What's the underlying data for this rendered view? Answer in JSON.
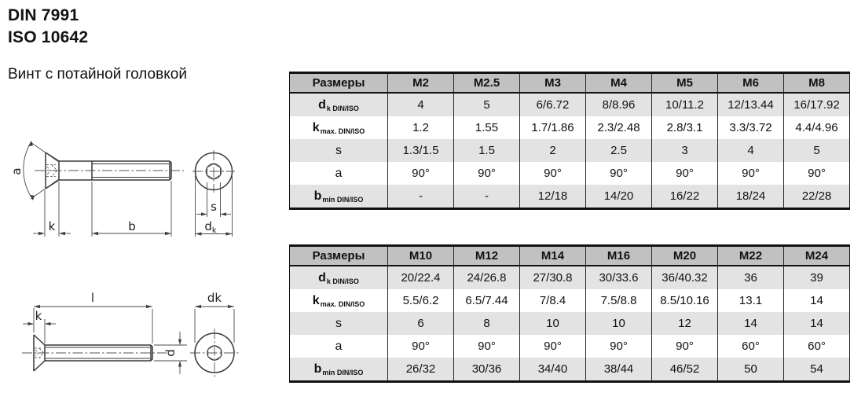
{
  "header": {
    "din": "DIN 7991",
    "iso": "ISO 10642",
    "subtitle": "Винт с потайной головкой"
  },
  "tables": [
    {
      "header": [
        "Размеры",
        "M2",
        "M2.5",
        "M3",
        "M4",
        "M5",
        "M6",
        "M8"
      ],
      "rows": [
        {
          "label_main": "d",
          "label_sub": "k DIN/ISO",
          "values": [
            "4",
            "5",
            "6/6.72",
            "8/8.96",
            "10/11.2",
            "12/13.44",
            "16/17.92"
          ]
        },
        {
          "label_main": "k",
          "label_sub": "max. DIN/ISO",
          "values": [
            "1.2",
            "1.55",
            "1.7/1.86",
            "2.3/2.48",
            "2.8/3.1",
            "3.3/3.72",
            "4.4/4.96"
          ]
        },
        {
          "label_main": "s",
          "label_sub": "",
          "values": [
            "1.3/1.5",
            "1.5",
            "2",
            "2.5",
            "3",
            "4",
            "5"
          ]
        },
        {
          "label_main": "a",
          "label_sub": "",
          "values": [
            "90°",
            "90°",
            "90°",
            "90°",
            "90°",
            "90°",
            "90°"
          ]
        },
        {
          "label_main": "b",
          "label_sub": "min DIN/ISO",
          "values": [
            "-",
            "-",
            "12/18",
            "14/20",
            "16/22",
            "18/24",
            "22/28"
          ]
        }
      ]
    },
    {
      "header": [
        "Размеры",
        "M10",
        "M12",
        "M14",
        "M16",
        "M20",
        "M22",
        "M24"
      ],
      "rows": [
        {
          "label_main": "d",
          "label_sub": "k DIN/ISO",
          "values": [
            "20/22.4",
            "24/26.8",
            "27/30.8",
            "30/33.6",
            "36/40.32",
            "36",
            "39"
          ]
        },
        {
          "label_main": "k",
          "label_sub": "max. DIN/ISO",
          "values": [
            "5.5/6.2",
            "6.5/7.44",
            "7/8.4",
            "7.5/8.8",
            "8.5/10.16",
            "13.1",
            "14"
          ]
        },
        {
          "label_main": "s",
          "label_sub": "",
          "values": [
            "6",
            "8",
            "10",
            "10",
            "12",
            "14",
            "14"
          ]
        },
        {
          "label_main": "a",
          "label_sub": "",
          "values": [
            "90°",
            "90°",
            "90°",
            "90°",
            "90°",
            "60°",
            "60°"
          ]
        },
        {
          "label_main": "b",
          "label_sub": "min DIN/ISO",
          "values": [
            "26/32",
            "30/36",
            "34/40",
            "38/44",
            "46/52",
            "50",
            "54"
          ]
        }
      ]
    }
  ],
  "drawings": {
    "top": {
      "angle": "a",
      "head_height": "k",
      "thread_length": "b",
      "socket_width": "s",
      "head_dia_main": "d",
      "head_dia_sub": "k"
    },
    "bottom": {
      "length": "l",
      "head_height": "k",
      "shank_dia": "d",
      "head_dia": "dk"
    }
  },
  "colors": {
    "header_bg": "#c1c1c1",
    "row_alt_bg": "#e3e3e3",
    "row_bg": "#ffffff",
    "table_border": "#111111",
    "text": "#111111",
    "line": "#3b3b3b"
  }
}
